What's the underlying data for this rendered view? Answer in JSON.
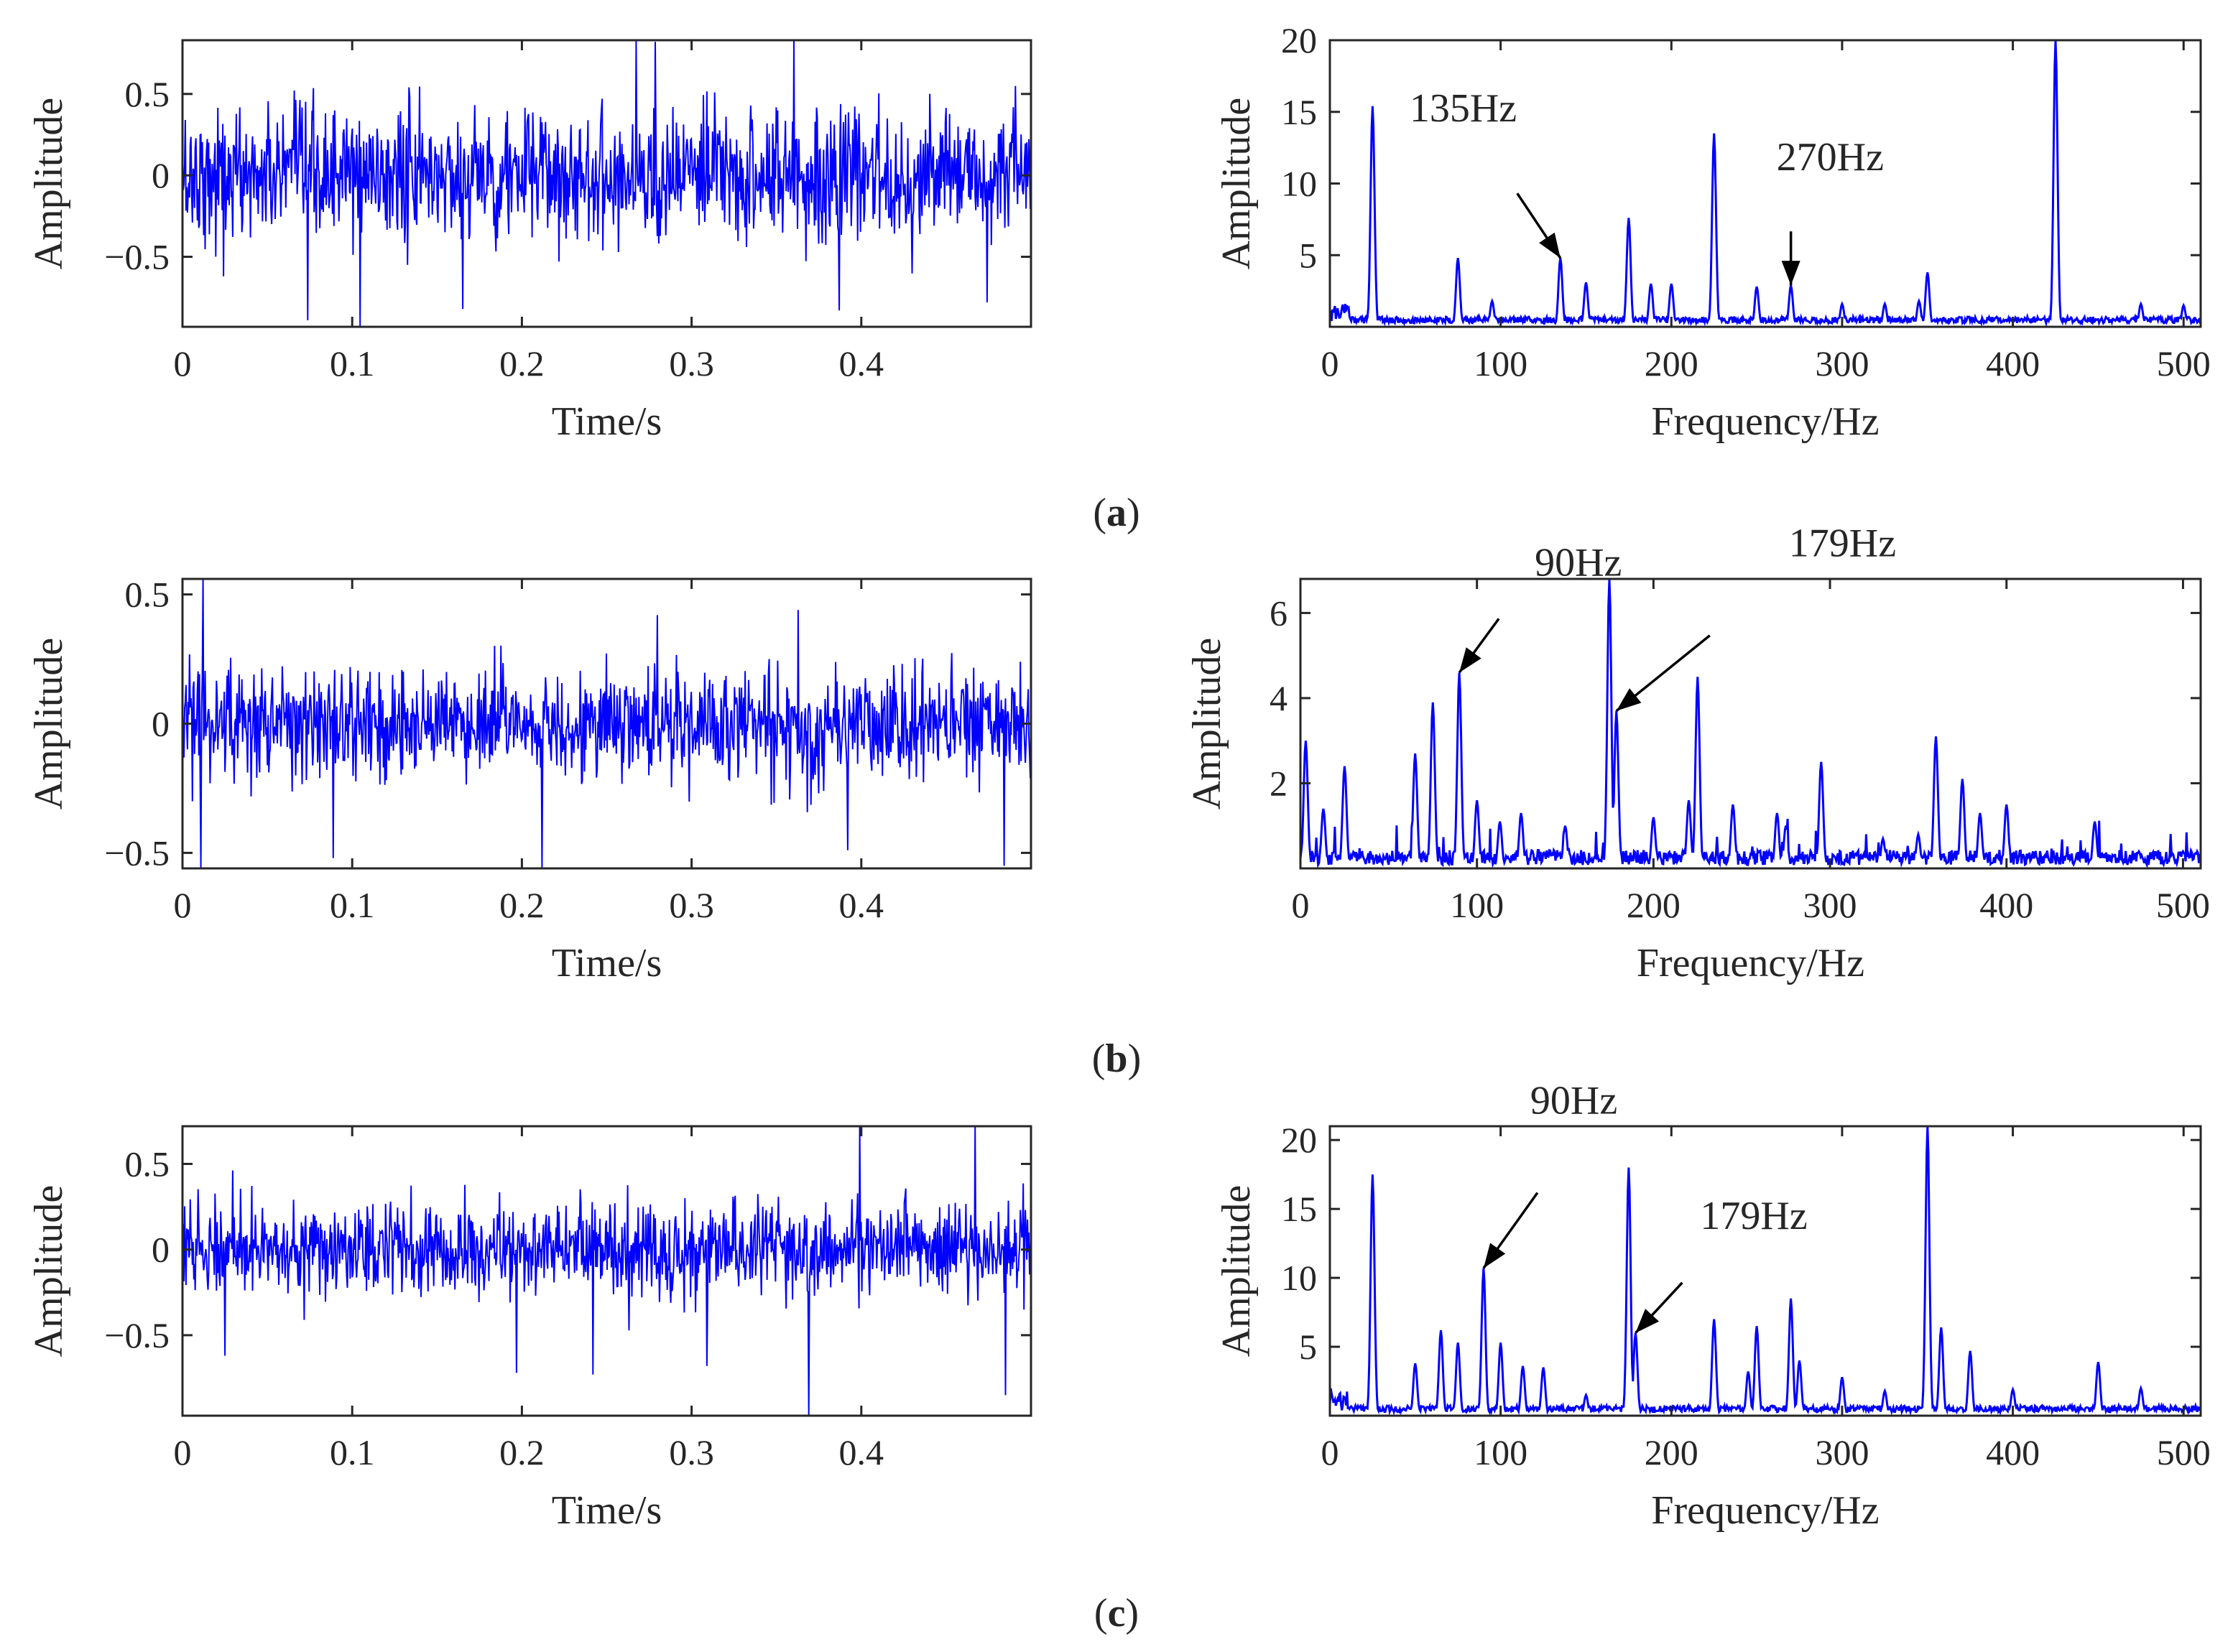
{
  "figure": {
    "captions": [
      "(a)",
      "(b)",
      "(c)"
    ]
  },
  "chart_data": [
    {
      "id": "a-time",
      "panel": "a",
      "type": "line",
      "signal": "time-domain vibration",
      "xlabel": "Time/s",
      "ylabel": "Amplitude",
      "xlim": [
        0,
        0.5
      ],
      "ylim": [
        -0.93,
        0.83
      ],
      "xticks": [
        0,
        0.1,
        0.2,
        0.3,
        0.4
      ],
      "xtick_labels": [
        "0",
        "0.1",
        "0.2",
        "0.3",
        "0.4"
      ],
      "yticks": [
        -0.5,
        0,
        0.5
      ],
      "ytick_labels": [
        "−0.5",
        "0",
        "0.5"
      ],
      "series": [
        {
          "name": "signal",
          "color": "#0000ff",
          "noise_std": 0.2,
          "spikes": [
            [
              0.0737,
              -0.89
            ],
            [
              0.1047,
              -0.93
            ],
            [
              0.2675,
              0.83
            ],
            [
              0.2785,
              0.82
            ],
            [
              0.3605,
              0.83
            ],
            [
              0.387,
              -0.83
            ],
            [
              0.165,
              -0.82
            ],
            [
              0.024,
              -0.62
            ],
            [
              0.474,
              -0.78
            ]
          ]
        }
      ],
      "sample_count": 1200
    },
    {
      "id": "a-spectrum",
      "panel": "a",
      "type": "line",
      "signal": "frequency spectrum",
      "xlabel": "Frequency/Hz",
      "ylabel": "Amplitude",
      "xlim": [
        0,
        510
      ],
      "ylim": [
        0,
        20
      ],
      "xticks": [
        0,
        100,
        200,
        300,
        400,
        500
      ],
      "xtick_labels": [
        "0",
        "100",
        "200",
        "300",
        "400",
        "500"
      ],
      "yticks": [
        5,
        10,
        15,
        20
      ],
      "ytick_labels": [
        "5",
        "10",
        "15",
        "20"
      ],
      "series": [
        {
          "name": "spectrum",
          "color": "#0000ff",
          "peaks": [
            [
              25,
              15.4
            ],
            [
              75,
              4.8
            ],
            [
              95,
              1.8
            ],
            [
              135,
              4.8
            ],
            [
              150,
              3.1
            ],
            [
              175,
              7.6
            ],
            [
              188,
              3.0
            ],
            [
              200,
              3.0
            ],
            [
              225,
              13.5
            ],
            [
              250,
              2.8
            ],
            [
              270,
              2.9
            ],
            [
              300,
              1.6
            ],
            [
              325,
              1.6
            ],
            [
              345,
              1.8
            ],
            [
              350,
              3.8
            ],
            [
              425,
              20
            ],
            [
              475,
              1.6
            ],
            [
              500,
              1.5
            ]
          ]
        }
      ],
      "annotations": [
        {
          "text": "135Hz",
          "x": 135,
          "y": 4.8
        },
        {
          "text": "270Hz",
          "x": 270,
          "y": 2.9
        }
      ]
    },
    {
      "id": "b-time",
      "panel": "b",
      "type": "line",
      "signal": "time-domain vibration",
      "xlabel": "Time/s",
      "ylabel": "Amplitude",
      "xlim": [
        0,
        0.5
      ],
      "ylim": [
        -0.56,
        0.56
      ],
      "xticks": [
        0,
        0.1,
        0.2,
        0.3,
        0.4
      ],
      "xtick_labels": [
        "0",
        "0.1",
        "0.2",
        "0.3",
        "0.4"
      ],
      "yticks": [
        -0.5,
        0,
        0.5
      ],
      "ytick_labels": [
        "−0.5",
        "0",
        "0.5"
      ],
      "series": [
        {
          "name": "signal",
          "color": "#0000ff",
          "noise_std": 0.11,
          "spikes": [
            [
              0.012,
              0.56
            ],
            [
              0.011,
              -0.56
            ],
            [
              0.212,
              -0.56
            ],
            [
              0.089,
              -0.52
            ],
            [
              0.484,
              -0.55
            ],
            [
              0.392,
              -0.49
            ],
            [
              0.28,
              0.42
            ],
            [
              0.363,
              0.44
            ]
          ]
        }
      ],
      "sample_count": 1200
    },
    {
      "id": "b-spectrum",
      "panel": "b",
      "type": "line",
      "signal": "frequency spectrum",
      "xlabel": "Frequency/Hz",
      "ylabel": "Amplitude",
      "xlim": [
        0,
        510
      ],
      "ylim": [
        0,
        6.8
      ],
      "xticks": [
        0,
        100,
        200,
        300,
        400,
        500
      ],
      "xtick_labels": [
        "0",
        "100",
        "200",
        "300",
        "400",
        "500"
      ],
      "yticks": [
        2,
        4,
        6
      ],
      "ytick_labels": [
        "2",
        "4",
        "6"
      ],
      "series": [
        {
          "name": "spectrum",
          "color": "#0000ff",
          "peaks": [
            [
              3,
              3.0
            ],
            [
              13,
              1.4
            ],
            [
              25,
              2.4
            ],
            [
              65,
              2.7
            ],
            [
              75,
              3.9
            ],
            [
              90,
              4.6
            ],
            [
              100,
              1.6
            ],
            [
              113,
              1.1
            ],
            [
              125,
              1.3
            ],
            [
              150,
              1.0
            ],
            [
              175,
              6.8
            ],
            [
              179,
              3.7
            ],
            [
              200,
              1.2
            ],
            [
              220,
              1.6
            ],
            [
              225,
              4.5
            ],
            [
              245,
              1.5
            ],
            [
              270,
              1.3
            ],
            [
              275,
              1.0
            ],
            [
              295,
              2.5
            ],
            [
              330,
              0.7
            ],
            [
              350,
              0.8
            ],
            [
              360,
              3.1
            ],
            [
              375,
              2.1
            ],
            [
              385,
              1.3
            ],
            [
              400,
              1.5
            ],
            [
              450,
              1.1
            ],
            [
              475,
              0.4
            ],
            [
              500,
              0.4
            ]
          ]
        }
      ],
      "annotations": [
        {
          "text": "90Hz",
          "x": 90,
          "y": 4.6
        },
        {
          "text": "179Hz",
          "x": 179,
          "y": 3.7
        }
      ]
    },
    {
      "id": "c-time",
      "panel": "c",
      "type": "line",
      "signal": "time-domain vibration",
      "xlabel": "Time/s",
      "ylabel": "Amplitude",
      "xlim": [
        0,
        0.5
      ],
      "ylim": [
        -0.97,
        0.72
      ],
      "xticks": [
        0,
        0.1,
        0.2,
        0.3,
        0.4
      ],
      "xtick_labels": [
        "0",
        "0.1",
        "0.2",
        "0.3",
        "0.4"
      ],
      "yticks": [
        -0.5,
        0,
        0.5
      ],
      "ytick_labels": [
        "−0.5",
        "0",
        "0.5"
      ],
      "series": [
        {
          "name": "signal",
          "color": "#0000ff",
          "noise_std": 0.13,
          "spikes": [
            [
              0.369,
              -0.97
            ],
            [
              0.399,
              0.72
            ],
            [
              0.467,
              0.72
            ],
            [
              0.025,
              -0.62
            ],
            [
              0.242,
              -0.73
            ],
            [
              0.485,
              -0.85
            ],
            [
              0.197,
              -0.72
            ],
            [
              0.309,
              -0.68
            ]
          ]
        }
      ],
      "sample_count": 1200
    },
    {
      "id": "c-spectrum",
      "panel": "c",
      "type": "line",
      "signal": "frequency spectrum",
      "xlabel": "Frequency/Hz",
      "ylabel": "Amplitude",
      "xlim": [
        0,
        510
      ],
      "ylim": [
        0,
        21
      ],
      "xticks": [
        0,
        100,
        200,
        300,
        400,
        500
      ],
      "xtick_labels": [
        "0",
        "100",
        "200",
        "300",
        "400",
        "500"
      ],
      "yticks": [
        5,
        10,
        15,
        20
      ],
      "ytick_labels": [
        "5",
        "10",
        "15",
        "20"
      ],
      "series": [
        {
          "name": "spectrum",
          "color": "#0000ff",
          "peaks": [
            [
              25,
              17.5
            ],
            [
              50,
              3.8
            ],
            [
              65,
              6.2
            ],
            [
              75,
              5.3
            ],
            [
              90,
              10.7
            ],
            [
              100,
              5.3
            ],
            [
              113,
              3.6
            ],
            [
              125,
              3.5
            ],
            [
              150,
              1.5
            ],
            [
              175,
              18.0
            ],
            [
              179,
              6.0
            ],
            [
              225,
              7.0
            ],
            [
              245,
              3.2
            ],
            [
              250,
              6.5
            ],
            [
              270,
              8.5
            ],
            [
              275,
              4.0
            ],
            [
              300,
              2.8
            ],
            [
              325,
              1.8
            ],
            [
              350,
              21
            ],
            [
              358,
              6.4
            ],
            [
              375,
              4.7
            ],
            [
              400,
              1.9
            ],
            [
              450,
              3.9
            ],
            [
              475,
              2.0
            ]
          ]
        }
      ],
      "annotations": [
        {
          "text": "90Hz",
          "x": 90,
          "y": 10.7
        },
        {
          "text": "179Hz",
          "x": 179,
          "y": 6.0
        }
      ]
    }
  ]
}
